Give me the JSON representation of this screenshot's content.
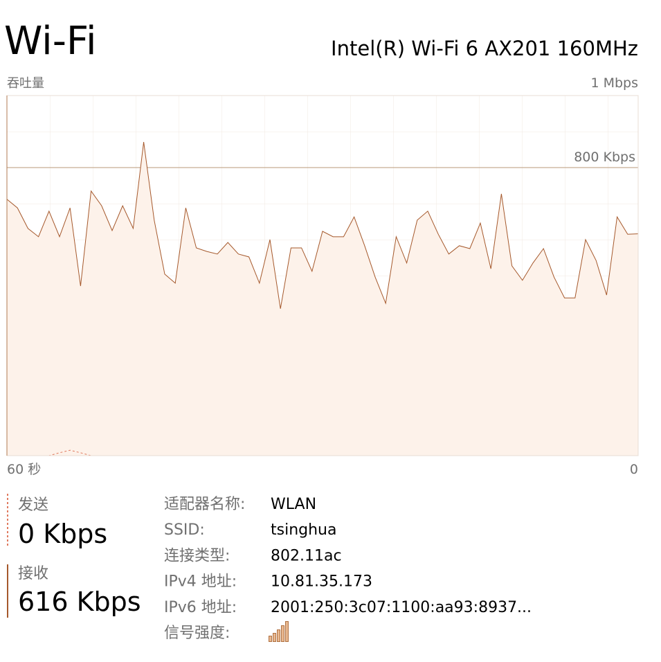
{
  "header": {
    "title": "Wi-Fi",
    "adapter": "Intel(R) Wi-Fi 6 AX201 160MHz"
  },
  "chart_data": {
    "type": "line",
    "y_label": "吞吐量",
    "x": [
      60,
      59,
      58,
      57,
      56,
      55,
      54,
      53,
      52,
      51,
      50,
      49,
      48,
      47,
      46,
      45,
      44,
      43,
      42,
      41,
      40,
      39,
      38,
      37,
      36,
      35,
      34,
      33,
      32,
      31,
      30,
      29,
      28,
      27,
      26,
      25,
      24,
      23,
      22,
      21,
      20,
      19,
      18,
      17,
      16,
      15,
      14,
      13,
      12,
      11,
      10,
      9,
      8,
      7,
      6,
      5,
      4,
      3,
      2,
      1,
      0
    ],
    "xlim": [
      60,
      0
    ],
    "xticks": [
      {
        "value": 60,
        "label": "60 秒"
      },
      0
    ],
    "ylim": [
      0,
      1000
    ],
    "yticks": [
      {
        "value": 1000,
        "label": "1 Mbps"
      },
      {
        "value": 800,
        "label": "800 Kbps"
      }
    ],
    "series": [
      {
        "name": "接收",
        "color": "#a5582b",
        "fill": "#fdf2ea",
        "dashed": false,
        "values": [
          712,
          688,
          631,
          608,
          679,
          608,
          688,
          471,
          735,
          694,
          625,
          694,
          631,
          871,
          654,
          504,
          479,
          688,
          577,
          567,
          560,
          592,
          560,
          552,
          479,
          600,
          408,
          577,
          577,
          512,
          623,
          608,
          608,
          663,
          583,
          496,
          423,
          608,
          535,
          654,
          679,
          615,
          560,
          583,
          575,
          646,
          519,
          727,
          527,
          487,
          535,
          575,
          496,
          438,
          438,
          600,
          542,
          446,
          663,
          615,
          616
        ]
      },
      {
        "name": "发送",
        "color": "#e07a5f",
        "dashed": true,
        "values": [
          0,
          0,
          0,
          0,
          0,
          8,
          15,
          8,
          0,
          0,
          0,
          0,
          0,
          0,
          0,
          0,
          0,
          0,
          0,
          0,
          0,
          0,
          0,
          0,
          0,
          0,
          0,
          0,
          0,
          0,
          0,
          0,
          0,
          0,
          0,
          0,
          0,
          0,
          0,
          0,
          0,
          0,
          0,
          0,
          0,
          0,
          0,
          0,
          0,
          0,
          0,
          0,
          0,
          0,
          0,
          0,
          0,
          0,
          0,
          0,
          0
        ]
      }
    ]
  },
  "stats": {
    "send": "0 Kbps",
    "receive": "616 Kbps"
  },
  "properties": [
    {
      "key": "适配器名称:",
      "value": "WLAN"
    },
    {
      "key": "SSID:",
      "value": "tsinghua"
    },
    {
      "key": "连接类型:",
      "value": "802.11ac"
    },
    {
      "key": "IPv4 地址:",
      "value": "10.81.35.173"
    },
    {
      "key": "IPv6 地址:",
      "value": "2001:250:3c07:1100:aa93:8937..."
    },
    {
      "key": "信号强度:",
      "value": null
    }
  ]
}
